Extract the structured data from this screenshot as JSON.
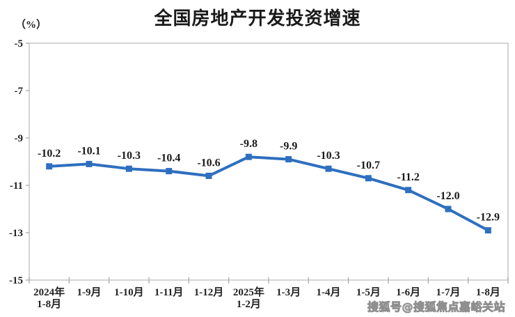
{
  "header": {
    "title": "全国房地产开发投资增速",
    "unit_label": "（%）"
  },
  "watermark": {
    "text": "搜狐号@搜狐焦点嘉峪关站"
  },
  "chart_data": {
    "type": "line",
    "title": "全国房地产开发投资增速",
    "ylabel": "（%）",
    "xlabel": "",
    "categories": [
      [
        "2024年",
        "1-8月"
      ],
      [
        "1-9月"
      ],
      [
        "1-10月"
      ],
      [
        "1-11月"
      ],
      [
        "1-12月"
      ],
      [
        "2025年",
        "1-2月"
      ],
      [
        "1-3月"
      ],
      [
        "1-4月"
      ],
      [
        "1-5月"
      ],
      [
        "1-6月"
      ],
      [
        "1-7月"
      ],
      [
        "1-8月"
      ]
    ],
    "values": [
      -10.2,
      -10.1,
      -10.3,
      -10.4,
      -10.6,
      -9.8,
      -9.9,
      -10.3,
      -10.7,
      -11.2,
      -12.0,
      -12.9
    ],
    "ylim": [
      -15,
      -5
    ],
    "yticks": [
      -5,
      -7,
      -9,
      -11,
      -13,
      -15
    ],
    "grid": false,
    "legend": "none",
    "colors": {
      "line": "#2e6fbf",
      "marker": "#2e6fbf",
      "data_label": "#1a1a1a",
      "axis_border": "#c6c6c6",
      "tick": "#a9a9a9",
      "tick_label": "#222222"
    },
    "marker_shape": "square",
    "data_labels_visible": true
  }
}
